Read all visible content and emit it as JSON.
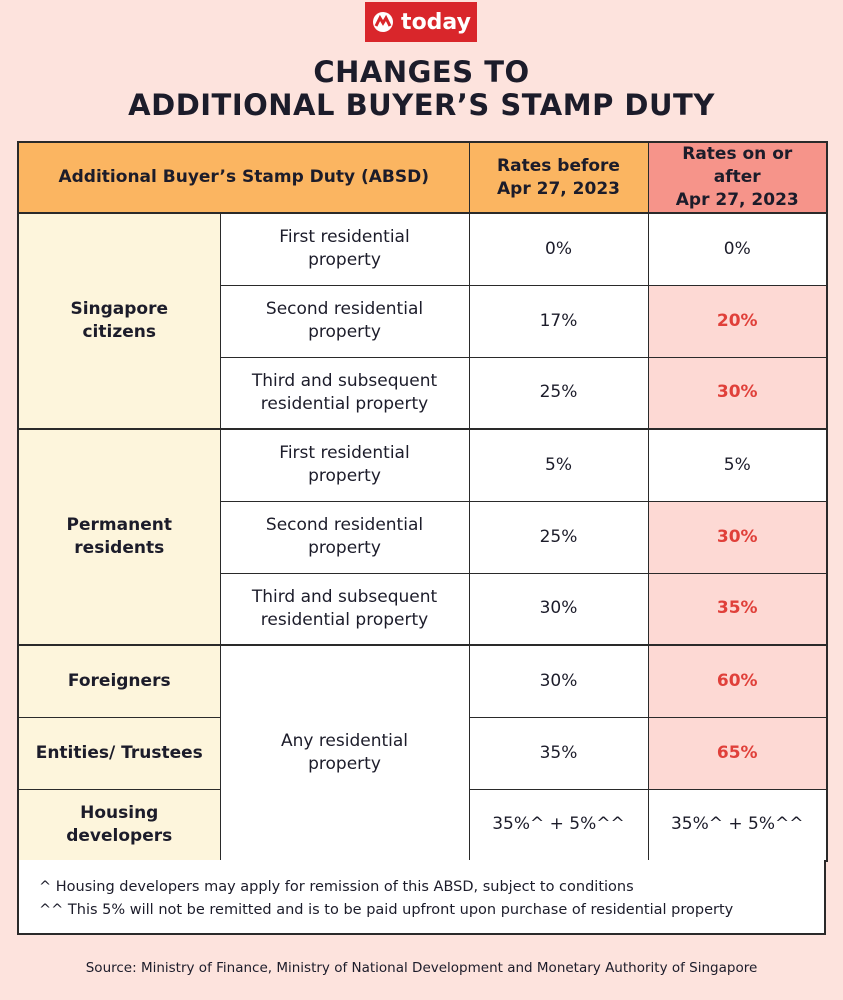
{
  "logo": "today",
  "title": [
    "CHANGES TO",
    "ADDITIONAL BUYER’S STAMP DUTY"
  ],
  "table": {
    "header": [
      "Additional Buyer’s Stamp Duty (ABSD)",
      "Rates before\nApr 27, 2023",
      "Rates on or after\nApr 27, 2023"
    ],
    "groups": [
      {
        "buyers": [
          "Singapore\ncitizens"
        ],
        "properties": [
          "First residential\nproperty",
          "Second residential\nproperty",
          "Third and subsequent\nresidential property"
        ],
        "before": [
          "0%",
          "17%",
          "25%"
        ],
        "after": [
          "0%",
          "20%",
          "30%"
        ]
      },
      {
        "buyers": [
          "Permanent\nresidents"
        ],
        "properties": [
          "First residential\nproperty",
          "Second residential\nproperty",
          "Third and subsequent\nresidential property"
        ],
        "before": [
          "5%",
          "25%",
          "30%"
        ],
        "after": [
          "5%",
          "30%",
          "35%"
        ]
      },
      {
        "buyers": [
          "Foreigners",
          "Entities/ Trustees",
          "Housing developers"
        ],
        "properties": [
          "Any residential\nproperty"
        ],
        "before": [
          "30%",
          "35%",
          "35%^ + 5%^^"
        ],
        "after": [
          "60%",
          "65%",
          "35%^ + 5%^^"
        ]
      }
    ]
  },
  "footnotes": [
    "^ Housing developers may apply for remission of this ABSD, subject to conditions",
    "^^ This 5% will not be remitted and is to be paid upfront upon purchase of residential property"
  ],
  "source": "Source:  Ministry of Finance, Ministry of National Development  and Monetary Authority of Singapore"
}
